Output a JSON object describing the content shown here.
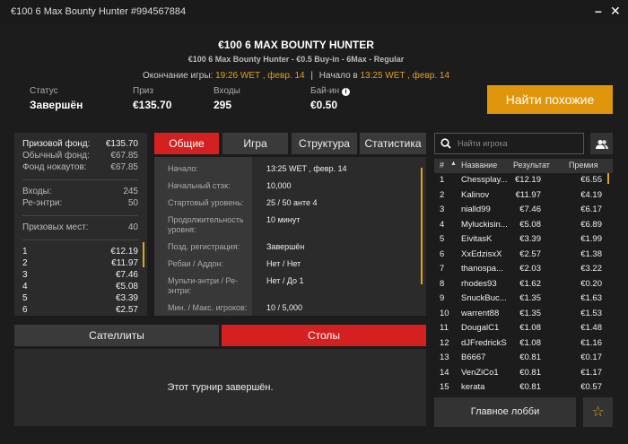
{
  "window": {
    "title": "€100 6 Max Bounty Hunter #994567884",
    "minimize": "–",
    "close": "✕"
  },
  "header": {
    "title": "€100 6 MAX BOUNTY HUNTER",
    "subtitle": "€100 6 Max Bounty Hunter - €0.5 Buy-in - 6Max - Regular",
    "end_label": "Окончание игры:",
    "end_value": "19:26 WET , февр. 14",
    "divider": "|",
    "start_label": "Начало в",
    "start_value": "13:25 WET , февр. 14"
  },
  "stats": [
    {
      "label": "Статус",
      "value": "Завершён"
    },
    {
      "label": "Приз",
      "value": "€135.70"
    },
    {
      "label": "Входы",
      "value": "295"
    },
    {
      "label": "Бай-ин",
      "value": "€0.50"
    }
  ],
  "find_similar": "Найти похожие",
  "prize": {
    "pool_label": "Призовой фонд:",
    "pool": "€135.70",
    "regular_label": "Обычный фонд:",
    "regular": "€67.85",
    "ko_label": "Фонд нокаутов:",
    "ko": "€67.85",
    "entries_label": "Входы:",
    "entries": "245",
    "reentries_label": "Ре-энтри:",
    "reentries": "50",
    "places_label": "Призовых мест:",
    "places": "40",
    "payouts": [
      [
        "1",
        "€12.19"
      ],
      [
        "2",
        "€11.97"
      ],
      [
        "3",
        "€7.46"
      ],
      [
        "4",
        "€5.08"
      ],
      [
        "5",
        "€3.39"
      ],
      [
        "6",
        "€2.57"
      ]
    ]
  },
  "tabs": [
    "Общие",
    "Игра",
    "Структура",
    "Статистика"
  ],
  "info": [
    [
      "Начало:",
      "13:25 WET , февр. 14"
    ],
    [
      "Начальный стэк:",
      "10,000"
    ],
    [
      "Стартовый уровень:",
      "25 / 50 анте 4"
    ],
    [
      "Продолжительность уровня:",
      "10 минут"
    ],
    [
      "Позд. регистрация:",
      "Завершён"
    ],
    [
      "Ребаи / Аддон:",
      "Нет / Нет"
    ],
    [
      "Мульти-энтри / Ре-энтри:",
      "Нет / До 1"
    ],
    [
      "Мин. / Макс. игроков:",
      "10 / 5,000"
    ]
  ],
  "bottom_tabs": [
    "Сателлиты",
    "Столы"
  ],
  "tables_message": "Этот турнир завершён.",
  "search": {
    "placeholder": "Найти игрока"
  },
  "players": {
    "headers": [
      "#",
      "Название",
      "Результат",
      "Премия"
    ],
    "rows": [
      [
        "1",
        "Chessplay...",
        "€12.19",
        "€6.55"
      ],
      [
        "2",
        "Kalinov",
        "€11.97",
        "€4.19"
      ],
      [
        "3",
        "nialld99",
        "€7.46",
        "€6.17"
      ],
      [
        "4",
        "Myluckisin...",
        "€5.08",
        "€6.89"
      ],
      [
        "5",
        "EivitasK",
        "€3.39",
        "€1.99"
      ],
      [
        "6",
        "XxEdzisxX",
        "€2.57",
        "€1.38"
      ],
      [
        "7",
        "thanospa...",
        "€2.03",
        "€3.22"
      ],
      [
        "8",
        "rhodes93",
        "€1.62",
        "€0.20"
      ],
      [
        "9",
        "SnuckBuc...",
        "€1.35",
        "€1.63"
      ],
      [
        "10",
        "warrent88",
        "€1.35",
        "€1.53"
      ],
      [
        "11",
        "DougalC1",
        "€1.08",
        "€1.48"
      ],
      [
        "12",
        "dJFredrickS",
        "€1.08",
        "€1.16"
      ],
      [
        "13",
        "B6667",
        "€0.81",
        "€0.17"
      ],
      [
        "14",
        "VenZiCo1",
        "€0.81",
        "€1.17"
      ],
      [
        "15",
        "kerata",
        "€0.81",
        "€0.57"
      ]
    ]
  },
  "lobby": "Главное лобби",
  "colors": {
    "accent": "#e0960c",
    "active_tab": "#d42020",
    "highlight": "#e0a020"
  }
}
